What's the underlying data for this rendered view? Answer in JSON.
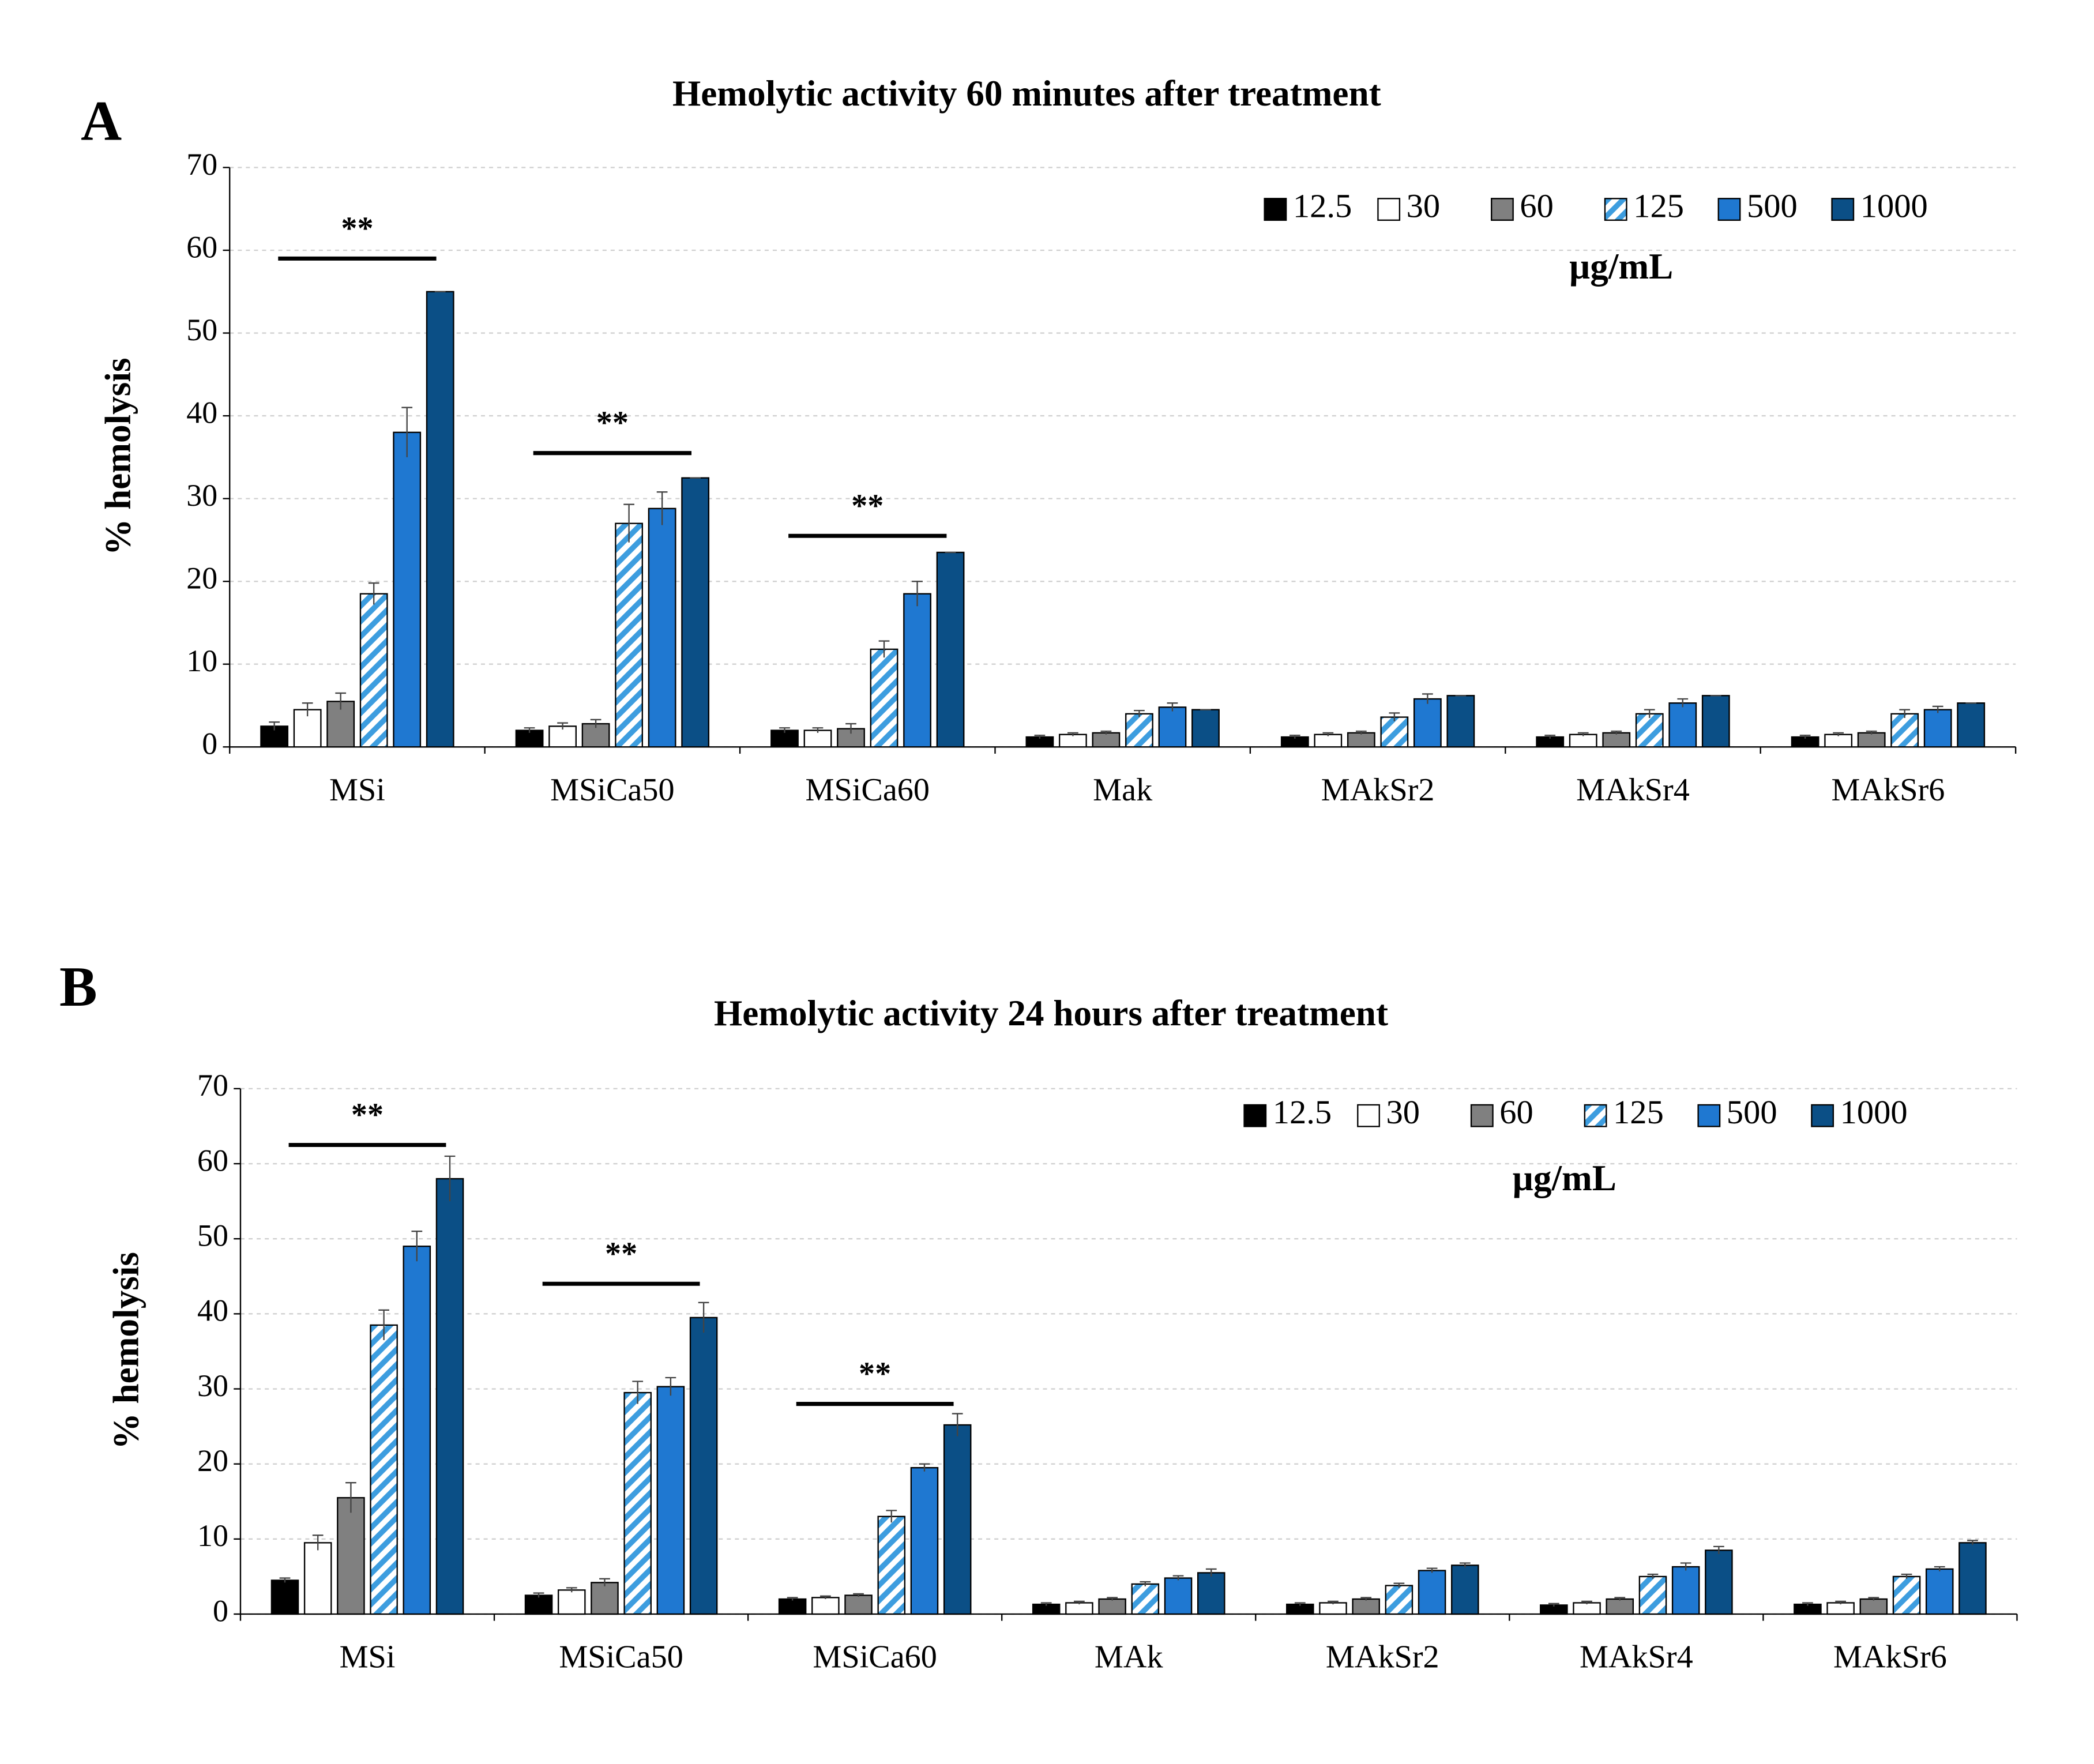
{
  "chart_data": [
    {
      "type": "bar",
      "panel": "A",
      "title": "Hemolytic activity 60 minutes after treatment",
      "ylabel": "% hemolysis",
      "categories": [
        "MSi",
        "MSiCa50",
        "MSiCa60",
        "Mak",
        "MAkSr2",
        "MAkSr4",
        "MAkSr6"
      ],
      "ylim": [
        0,
        70
      ],
      "yticks": [
        0,
        10,
        20,
        30,
        40,
        50,
        60,
        70
      ],
      "grid": true,
      "legend": "upper right",
      "legend_unit": "µg/mL",
      "series": [
        {
          "name": "12.5",
          "color": "#000000",
          "values": [
            2.5,
            2,
            2,
            1.2,
            1.2,
            1.2,
            1.2
          ],
          "errors": [
            0.5,
            0.3,
            0.3,
            0.2,
            0.2,
            0.2,
            0.2
          ]
        },
        {
          "name": "30",
          "color": "#ffffff",
          "values": [
            4.5,
            2.5,
            2,
            1.5,
            1.5,
            1.5,
            1.5
          ],
          "errors": [
            0.8,
            0.4,
            0.3,
            0.2,
            0.2,
            0.2,
            0.2
          ]
        },
        {
          "name": "60",
          "color": "#808080",
          "values": [
            5.5,
            2.8,
            2.2,
            1.7,
            1.7,
            1.7,
            1.7
          ],
          "errors": [
            1,
            0.5,
            0.6,
            0.2,
            0.2,
            0.2,
            0.2
          ]
        },
        {
          "name": "125",
          "color": "#3d9ddf",
          "hatch": true,
          "values": [
            18.5,
            27,
            11.8,
            4,
            3.6,
            4,
            4
          ],
          "errors": [
            1.3,
            2.3,
            1,
            0.4,
            0.5,
            0.5,
            0.5
          ]
        },
        {
          "name": "500",
          "color": "#1f78d1",
          "values": [
            38,
            28.8,
            18.5,
            4.8,
            5.8,
            5.3,
            4.5
          ],
          "errors": [
            3,
            2,
            1.5,
            0.5,
            0.6,
            0.5,
            0.4
          ]
        },
        {
          "name": "1000",
          "color": "#0b4f86",
          "values": [
            55,
            32.5,
            23.5,
            4.5,
            6.2,
            6.2,
            5.3
          ],
          "errors": [
            0,
            0,
            0,
            0,
            0,
            0,
            0
          ]
        }
      ],
      "annotations": [
        {
          "text": "**",
          "category": "MSi",
          "y": 59
        },
        {
          "text": "**",
          "category": "MSiCa50",
          "y": 35.5
        },
        {
          "text": "**",
          "category": "MSiCa60",
          "y": 25.5
        }
      ]
    },
    {
      "type": "bar",
      "panel": "B",
      "title": "Hemolytic activity 24 hours after treatment",
      "ylabel": "% hemolysis",
      "categories": [
        "MSi",
        "MSiCa50",
        "MSiCa60",
        "MAk",
        "MAkSr2",
        "MAkSr4",
        "MAkSr6"
      ],
      "ylim": [
        0,
        70
      ],
      "yticks": [
        0,
        10,
        20,
        30,
        40,
        50,
        60,
        70
      ],
      "grid": true,
      "legend": "upper right",
      "legend_unit": "µg/mL",
      "series": [
        {
          "name": "12.5",
          "color": "#000000",
          "values": [
            4.5,
            2.5,
            2,
            1.3,
            1.3,
            1.2,
            1.3
          ],
          "errors": [
            0.3,
            0.3,
            0.2,
            0.2,
            0.2,
            0.2,
            0.2
          ]
        },
        {
          "name": "30",
          "color": "#ffffff",
          "values": [
            9.5,
            3.2,
            2.2,
            1.5,
            1.5,
            1.5,
            1.5
          ],
          "errors": [
            1,
            0.3,
            0.2,
            0.2,
            0.2,
            0.2,
            0.2
          ]
        },
        {
          "name": "60",
          "color": "#808080",
          "values": [
            15.5,
            4.2,
            2.5,
            2,
            2,
            2,
            2
          ],
          "errors": [
            2,
            0.5,
            0.2,
            0.2,
            0.2,
            0.2,
            0.2
          ]
        },
        {
          "name": "125",
          "color": "#3d9ddf",
          "hatch": true,
          "values": [
            38.5,
            29.5,
            13,
            4,
            3.8,
            5,
            5
          ],
          "errors": [
            2,
            1.5,
            0.8,
            0.3,
            0.3,
            0.3,
            0.3
          ]
        },
        {
          "name": "500",
          "color": "#1f78d1",
          "values": [
            49,
            30.3,
            19.5,
            4.8,
            5.8,
            6.3,
            6
          ],
          "errors": [
            2,
            1.2,
            0.5,
            0.3,
            0.3,
            0.5,
            0.3
          ]
        },
        {
          "name": "1000",
          "color": "#0b4f86",
          "values": [
            58,
            39.5,
            25.2,
            5.5,
            6.5,
            8.5,
            9.5
          ],
          "errors": [
            3,
            2,
            1.5,
            0.5,
            0.3,
            0.5,
            0.3
          ]
        }
      ],
      "annotations": [
        {
          "text": "**",
          "category": "MSi",
          "y": 62.5
        },
        {
          "text": "**",
          "category": "MSiCa50",
          "y": 44
        },
        {
          "text": "**",
          "category": "MSiCa60",
          "y": 28
        }
      ]
    }
  ]
}
